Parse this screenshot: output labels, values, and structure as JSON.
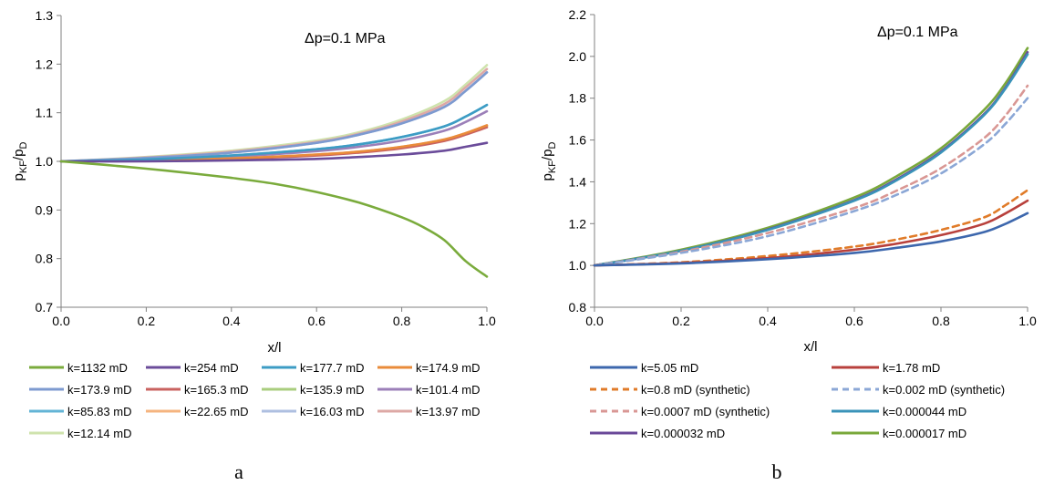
{
  "chart_data": [
    {
      "panel_label": "a",
      "type": "line",
      "annotation": "Δp=0.1 MPa",
      "xlabel": "x/l",
      "ylabel": {
        "base": "p",
        "sub1": "KF",
        "mid": "/p",
        "sub2": "D"
      },
      "xlim": [
        0,
        1
      ],
      "ylim": [
        0.7,
        1.3
      ],
      "xticks": [
        "0.0",
        "0.2",
        "0.4",
        "0.6",
        "0.8",
        "1.0"
      ],
      "yticks": [
        "0.7",
        "0.8",
        "0.9",
        "1.0",
        "1.1",
        "1.2",
        "1.3"
      ],
      "legend_position": "bottom",
      "series": [
        {
          "name": "k=1132 mD",
          "color": "#7aab3c",
          "dash": false,
          "x": [
            0,
            0.1,
            0.2,
            0.3,
            0.4,
            0.5,
            0.6,
            0.7,
            0.8,
            0.85,
            0.9,
            0.95,
            1.0
          ],
          "y": [
            1.0,
            0.993,
            0.985,
            0.976,
            0.966,
            0.954,
            0.937,
            0.915,
            0.885,
            0.865,
            0.838,
            0.795,
            0.763
          ]
        },
        {
          "name": "k=254 mD",
          "color": "#6b4c9a",
          "dash": false,
          "x": [
            0,
            0.2,
            0.4,
            0.6,
            0.7,
            0.8,
            0.9,
            0.95,
            1.0
          ],
          "y": [
            1.0,
            1.0,
            1.002,
            1.005,
            1.009,
            1.014,
            1.022,
            1.03,
            1.038
          ]
        },
        {
          "name": "k=177.7 mD",
          "color": "#3d9cc4",
          "dash": false,
          "x": [
            0,
            0.2,
            0.4,
            0.6,
            0.7,
            0.8,
            0.9,
            0.95,
            1.0
          ],
          "y": [
            1.0,
            1.004,
            1.012,
            1.025,
            1.035,
            1.05,
            1.072,
            1.092,
            1.116
          ]
        },
        {
          "name": "k=174.9 mD",
          "color": "#e98b3a",
          "dash": false,
          "x": [
            0,
            0.2,
            0.4,
            0.6,
            0.7,
            0.8,
            0.9,
            0.95,
            1.0
          ],
          "y": [
            1.0,
            1.002,
            1.006,
            1.014,
            1.02,
            1.03,
            1.045,
            1.058,
            1.074
          ]
        },
        {
          "name": "k=173.9 mD",
          "color": "#7d9ad0",
          "dash": false,
          "x": [
            0,
            0.2,
            0.4,
            0.6,
            0.7,
            0.8,
            0.9,
            0.95,
            1.0
          ],
          "y": [
            1.0,
            1.007,
            1.018,
            1.038,
            1.055,
            1.078,
            1.112,
            1.145,
            1.183
          ]
        },
        {
          "name": "k=165.3 mD",
          "color": "#c9625f",
          "dash": false,
          "x": [
            0,
            0.2,
            0.4,
            0.6,
            0.7,
            0.8,
            0.9,
            0.95,
            1.0
          ],
          "y": [
            1.0,
            1.002,
            1.005,
            1.012,
            1.018,
            1.027,
            1.042,
            1.055,
            1.07
          ]
        },
        {
          "name": "k=135.9 mD",
          "color": "#a9cd7e",
          "dash": false,
          "x": [
            0,
            0.2,
            0.4,
            0.6,
            0.7,
            0.8,
            0.9,
            0.95,
            1.0
          ],
          "y": [
            1.0,
            1.002,
            1.006,
            1.013,
            1.019,
            1.028,
            1.043,
            1.056,
            1.072
          ]
        },
        {
          "name": "k=101.4 mD",
          "color": "#9b7fb8",
          "dash": false,
          "x": [
            0,
            0.2,
            0.4,
            0.6,
            0.7,
            0.8,
            0.9,
            0.95,
            1.0
          ],
          "y": [
            1.0,
            1.003,
            1.01,
            1.021,
            1.03,
            1.043,
            1.063,
            1.081,
            1.103
          ]
        },
        {
          "name": "k=85.83 mD",
          "color": "#63b4d6",
          "dash": false,
          "x": [
            0,
            0.2,
            0.4,
            0.6,
            0.7,
            0.8,
            0.9,
            0.95,
            1.0
          ],
          "y": [
            1.0,
            1.004,
            1.012,
            1.025,
            1.035,
            1.05,
            1.072,
            1.092,
            1.116
          ]
        },
        {
          "name": "k=22.65 mD",
          "color": "#f5b47f",
          "dash": false,
          "x": [
            0,
            0.2,
            0.4,
            0.6,
            0.7,
            0.8,
            0.9,
            0.95,
            1.0
          ],
          "y": [
            1.0,
            1.002,
            1.006,
            1.014,
            1.02,
            1.03,
            1.045,
            1.058,
            1.074
          ]
        },
        {
          "name": "k=16.03 mD",
          "color": "#aebfe0",
          "dash": false,
          "x": [
            0,
            0.2,
            0.4,
            0.6,
            0.7,
            0.8,
            0.9,
            0.95,
            1.0
          ],
          "y": [
            1.0,
            1.007,
            1.018,
            1.038,
            1.055,
            1.078,
            1.112,
            1.145,
            1.183
          ]
        },
        {
          "name": "k=13.97 mD",
          "color": "#dda8a5",
          "dash": false,
          "x": [
            0,
            0.2,
            0.4,
            0.6,
            0.7,
            0.8,
            0.9,
            0.95,
            1.0
          ],
          "y": [
            1.0,
            1.008,
            1.02,
            1.04,
            1.057,
            1.082,
            1.118,
            1.152,
            1.19
          ]
        },
        {
          "name": "k=12.14 mD",
          "color": "#cfe3ad",
          "dash": false,
          "x": [
            0,
            0.2,
            0.4,
            0.6,
            0.7,
            0.8,
            0.9,
            0.95,
            1.0
          ],
          "y": [
            1.0,
            1.009,
            1.022,
            1.043,
            1.06,
            1.086,
            1.124,
            1.158,
            1.198
          ]
        }
      ]
    },
    {
      "panel_label": "b",
      "type": "line",
      "annotation": "Δp=0.1 MPa",
      "xlabel": "x/l",
      "ylabel": {
        "base": "p",
        "sub1": "KF",
        "mid": "/p",
        "sub2": "D"
      },
      "xlim": [
        0,
        1
      ],
      "ylim": [
        0.8,
        2.2
      ],
      "xticks": [
        "0.0",
        "0.2",
        "0.4",
        "0.6",
        "0.8",
        "1.0"
      ],
      "yticks": [
        "0.8",
        "1.0",
        "1.2",
        "1.4",
        "1.6",
        "1.8",
        "2.0",
        "2.2"
      ],
      "legend_position": "bottom",
      "series": [
        {
          "name": "k=5.05 mD",
          "color": "#3d67ad",
          "dash": false,
          "x": [
            0,
            0.2,
            0.4,
            0.6,
            0.7,
            0.8,
            0.9,
            0.95,
            1.0
          ],
          "y": [
            1.0,
            1.01,
            1.03,
            1.06,
            1.085,
            1.115,
            1.16,
            1.2,
            1.25
          ]
        },
        {
          "name": "k=1.78 mD",
          "color": "#b8403c",
          "dash": false,
          "x": [
            0,
            0.2,
            0.4,
            0.6,
            0.7,
            0.8,
            0.9,
            0.95,
            1.0
          ],
          "y": [
            1.0,
            1.012,
            1.035,
            1.075,
            1.105,
            1.145,
            1.2,
            1.25,
            1.31
          ]
        },
        {
          "name": "k=0.8 mD (synthetic)",
          "color": "#e07b29",
          "dash": true,
          "x": [
            0,
            0.2,
            0.4,
            0.6,
            0.7,
            0.8,
            0.9,
            0.95,
            1.0
          ],
          "y": [
            1.0,
            1.015,
            1.045,
            1.09,
            1.125,
            1.17,
            1.23,
            1.29,
            1.36
          ]
        },
        {
          "name": "k=0.002 mD (synthetic)",
          "color": "#8ba7d6",
          "dash": true,
          "x": [
            0,
            0.2,
            0.4,
            0.6,
            0.7,
            0.8,
            0.9,
            0.95,
            1.0
          ],
          "y": [
            1.0,
            1.06,
            1.14,
            1.26,
            1.34,
            1.44,
            1.58,
            1.68,
            1.8
          ]
        },
        {
          "name": "k=0.0007 mD (synthetic)",
          "color": "#d99794",
          "dash": true,
          "x": [
            0,
            0.2,
            0.4,
            0.6,
            0.7,
            0.8,
            0.9,
            0.95,
            1.0
          ],
          "y": [
            1.0,
            1.065,
            1.155,
            1.275,
            1.36,
            1.465,
            1.61,
            1.72,
            1.86
          ]
        },
        {
          "name": "k=0.000044 mD",
          "color": "#3a93b9",
          "dash": false,
          "x": [
            0,
            0.2,
            0.4,
            0.6,
            0.7,
            0.8,
            0.9,
            0.95,
            1.0
          ],
          "y": [
            1.0,
            1.07,
            1.17,
            1.31,
            1.41,
            1.54,
            1.72,
            1.85,
            2.01
          ]
        },
        {
          "name": "k=0.000032 mD",
          "color": "#6a4899",
          "dash": false,
          "x": [
            0,
            0.2,
            0.4,
            0.6,
            0.7,
            0.8,
            0.9,
            0.95,
            1.0
          ],
          "y": [
            1.0,
            1.07,
            1.172,
            1.313,
            1.415,
            1.545,
            1.725,
            1.855,
            2.02
          ]
        },
        {
          "name": "k=0.000017 mD",
          "color": "#79a83a",
          "dash": false,
          "x": [
            0,
            0.2,
            0.4,
            0.6,
            0.7,
            0.8,
            0.9,
            0.95,
            1.0
          ],
          "y": [
            1.0,
            1.075,
            1.18,
            1.325,
            1.43,
            1.56,
            1.745,
            1.875,
            2.04
          ]
        }
      ]
    }
  ]
}
